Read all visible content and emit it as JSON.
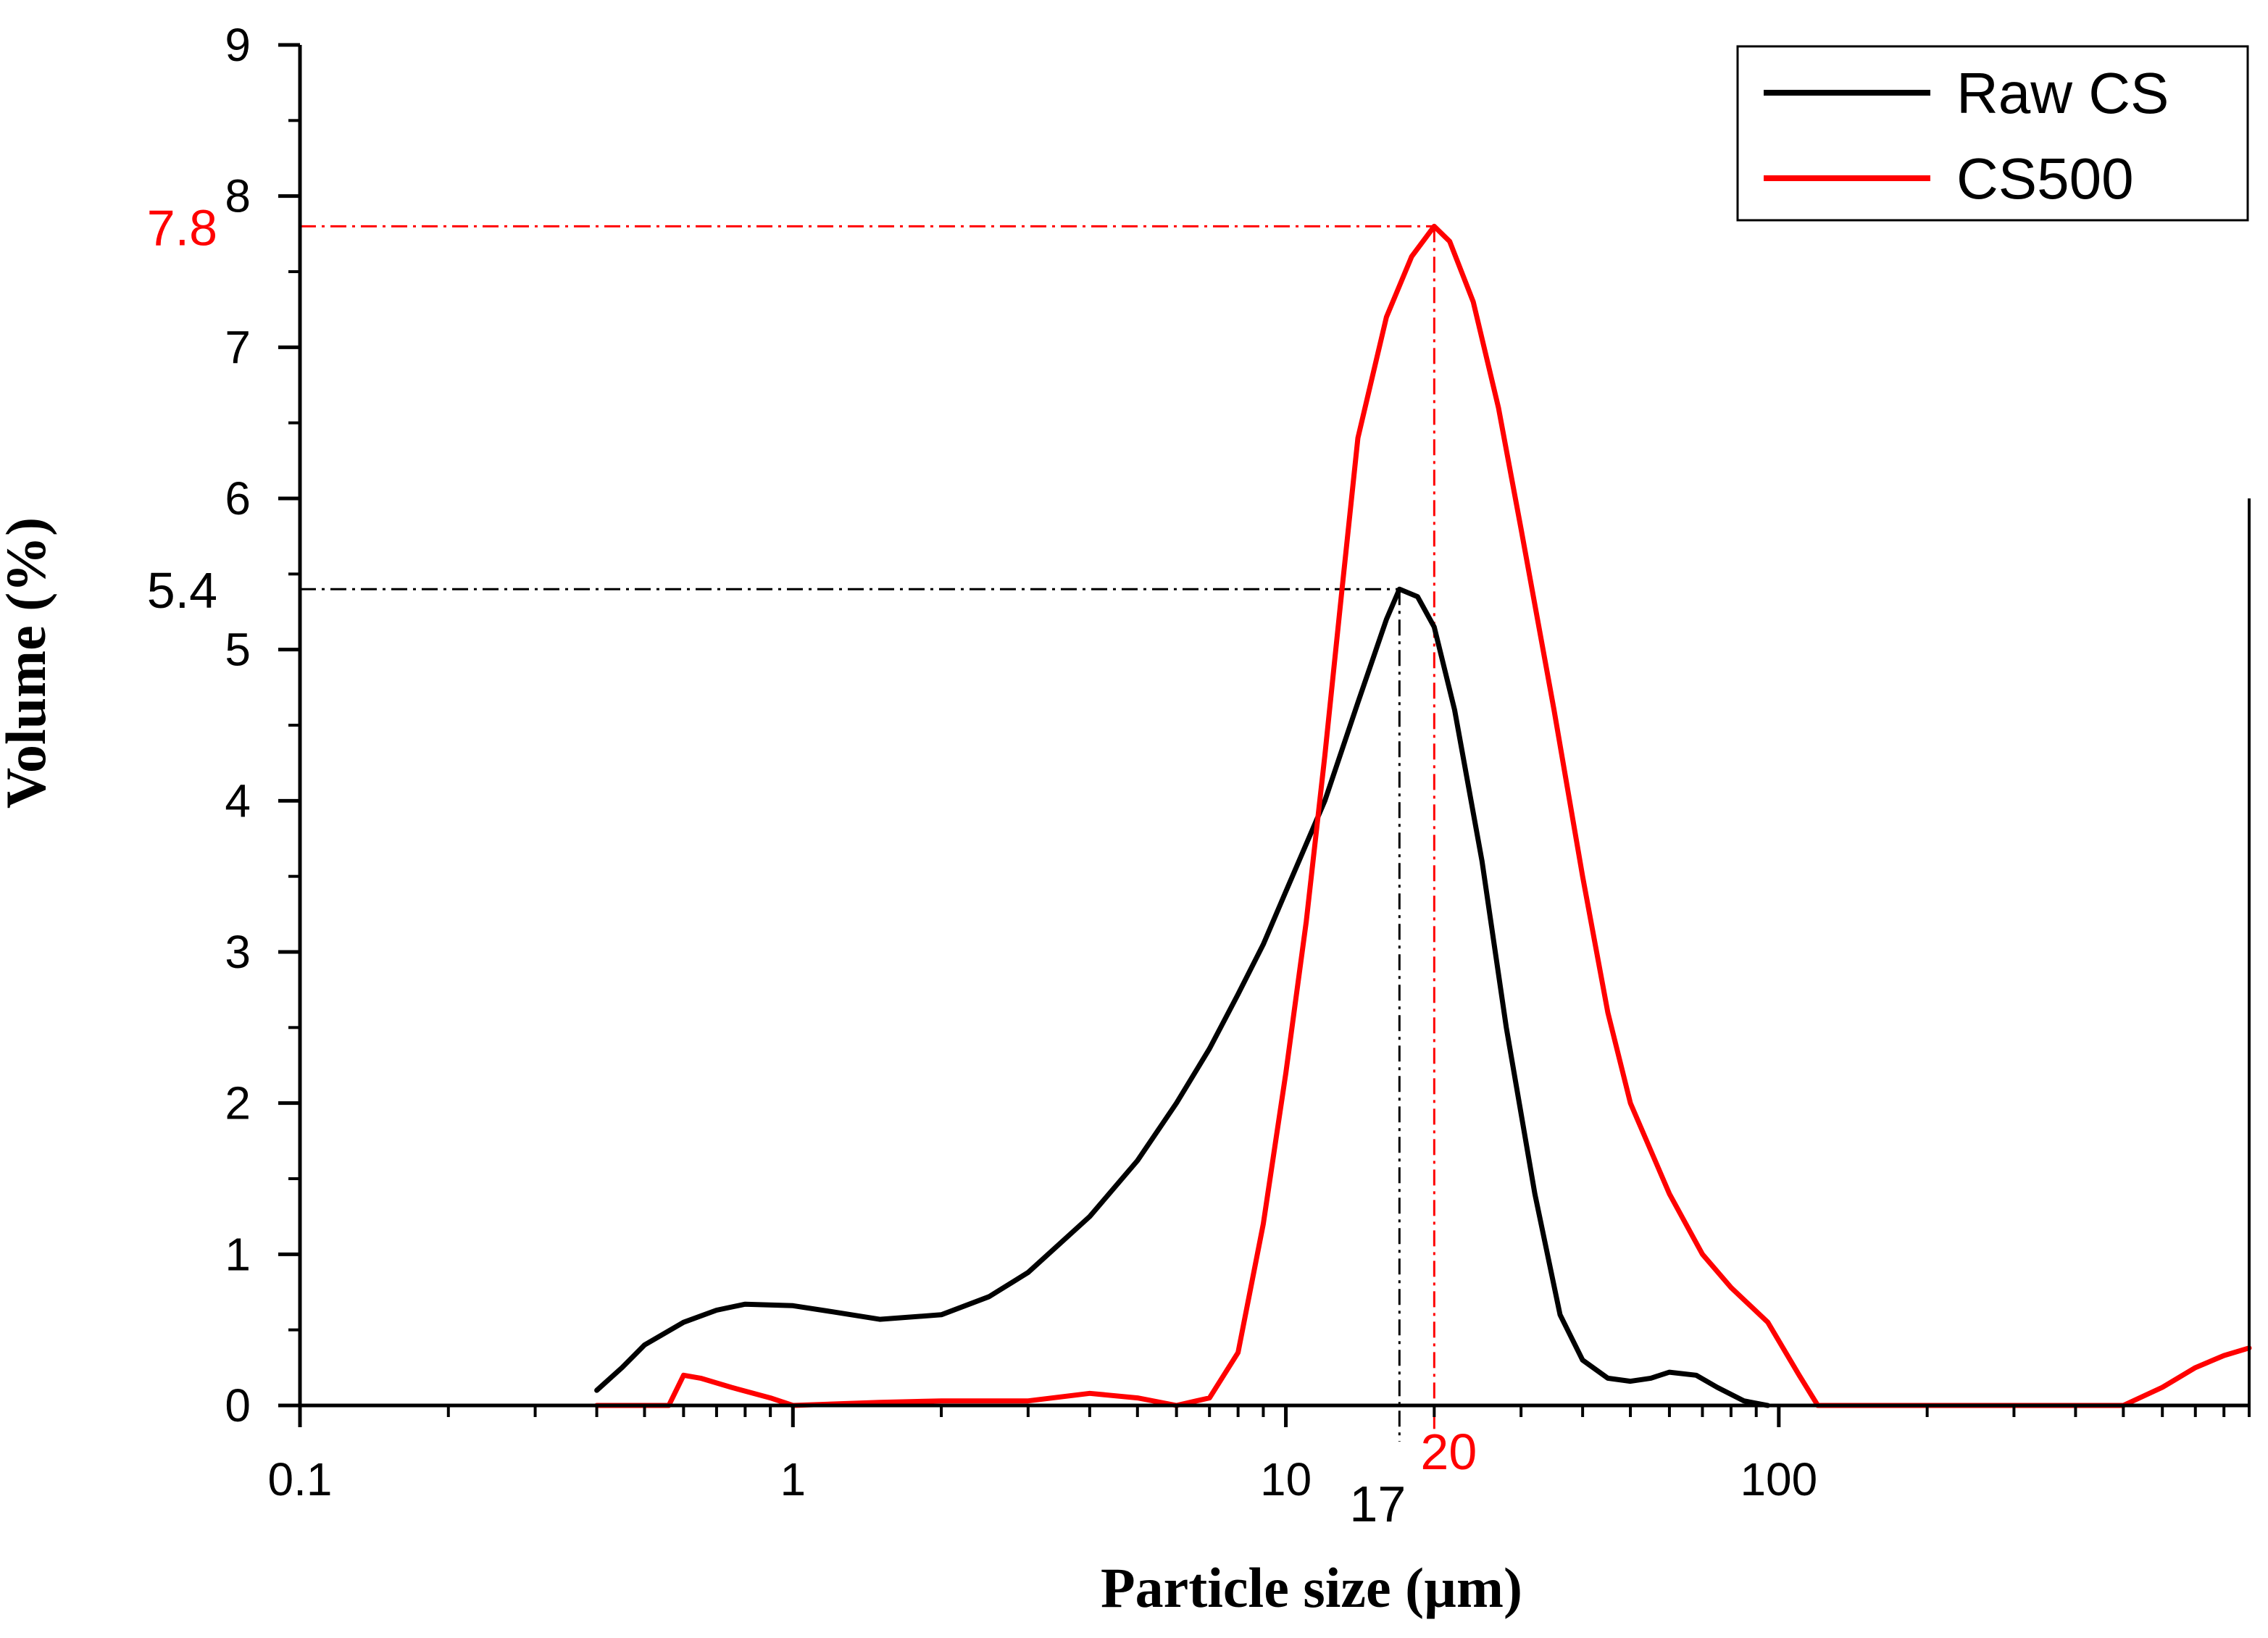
{
  "chart_data": {
    "type": "line",
    "title": "",
    "xlabel": "Particle size (µm)",
    "ylabel": "Volume (%)",
    "xscale": "log",
    "xlim": [
      0.1,
      900
    ],
    "ylim": [
      0,
      9
    ],
    "x_ticks": [
      0.1,
      1,
      10,
      100
    ],
    "x_tick_labels": [
      "0.1",
      "1",
      "10",
      "100"
    ],
    "y_ticks": [
      0,
      1,
      2,
      3,
      4,
      5,
      6,
      7,
      8,
      9
    ],
    "y_tick_labels": [
      "0",
      "1",
      "2",
      "3",
      "4",
      "5",
      "6",
      "7",
      "8",
      "9"
    ],
    "legend": {
      "position": "top-right",
      "entries": [
        "Raw CS",
        "CS500"
      ]
    },
    "series": [
      {
        "name": "Raw CS",
        "color": "#000000",
        "points": [
          [
            0.4,
            0.1
          ],
          [
            0.45,
            0.25
          ],
          [
            0.5,
            0.4
          ],
          [
            0.6,
            0.55
          ],
          [
            0.7,
            0.63
          ],
          [
            0.8,
            0.67
          ],
          [
            1.0,
            0.66
          ],
          [
            1.2,
            0.62
          ],
          [
            1.5,
            0.57
          ],
          [
            2.0,
            0.6
          ],
          [
            2.5,
            0.72
          ],
          [
            3.0,
            0.88
          ],
          [
            4.0,
            1.25
          ],
          [
            5.0,
            1.62
          ],
          [
            6.0,
            2.0
          ],
          [
            7.0,
            2.36
          ],
          [
            8.0,
            2.72
          ],
          [
            9.0,
            3.05
          ],
          [
            10.0,
            3.4
          ],
          [
            12.0,
            4.0
          ],
          [
            14.0,
            4.65
          ],
          [
            16.0,
            5.2
          ],
          [
            17.0,
            5.4
          ],
          [
            18.5,
            5.35
          ],
          [
            20.0,
            5.15
          ],
          [
            22.0,
            4.6
          ],
          [
            25.0,
            3.6
          ],
          [
            28.0,
            2.5
          ],
          [
            32.0,
            1.4
          ],
          [
            36.0,
            0.6
          ],
          [
            40.0,
            0.3
          ],
          [
            45.0,
            0.18
          ],
          [
            50.0,
            0.16
          ],
          [
            55.0,
            0.18
          ],
          [
            60.0,
            0.22
          ],
          [
            68.0,
            0.2
          ],
          [
            75.0,
            0.12
          ],
          [
            85.0,
            0.03
          ],
          [
            95.0,
            0.0
          ]
        ]
      },
      {
        "name": "CS500",
        "color": "#ff0000",
        "points": [
          [
            0.4,
            0.0
          ],
          [
            0.56,
            0.0
          ],
          [
            0.6,
            0.2
          ],
          [
            0.65,
            0.18
          ],
          [
            0.75,
            0.12
          ],
          [
            0.9,
            0.05
          ],
          [
            1.0,
            0.0
          ],
          [
            1.5,
            0.02
          ],
          [
            2.0,
            0.03
          ],
          [
            3.0,
            0.03
          ],
          [
            4.0,
            0.08
          ],
          [
            5.0,
            0.05
          ],
          [
            6.0,
            0.0
          ],
          [
            7.0,
            0.05
          ],
          [
            8.0,
            0.35
          ],
          [
            9.0,
            1.2
          ],
          [
            10.0,
            2.2
          ],
          [
            11.0,
            3.2
          ],
          [
            12.0,
            4.3
          ],
          [
            13.0,
            5.4
          ],
          [
            14.0,
            6.4
          ],
          [
            16.0,
            7.2
          ],
          [
            18.0,
            7.6
          ],
          [
            20.0,
            7.8
          ],
          [
            21.5,
            7.7
          ],
          [
            24.0,
            7.3
          ],
          [
            27.0,
            6.6
          ],
          [
            30.0,
            5.8
          ],
          [
            35.0,
            4.6
          ],
          [
            40.0,
            3.5
          ],
          [
            45.0,
            2.6
          ],
          [
            50.0,
            2.0
          ],
          [
            60.0,
            1.4
          ],
          [
            70.0,
            1.0
          ],
          [
            80.0,
            0.78
          ],
          [
            95.0,
            0.55
          ],
          [
            110.0,
            0.2
          ],
          [
            120.0,
            0.0
          ],
          [
            200.0,
            0.0
          ],
          [
            500.0,
            0.0
          ],
          [
            600.0,
            0.12
          ],
          [
            700.0,
            0.25
          ],
          [
            800.0,
            0.33
          ],
          [
            900.0,
            0.38
          ]
        ]
      }
    ],
    "annotations": [
      {
        "series": "Raw CS",
        "peak_x": 17,
        "peak_y": 5.4,
        "x_label": "17",
        "y_label": "5.4",
        "color": "#000000"
      },
      {
        "series": "CS500",
        "peak_x": 20,
        "peak_y": 7.8,
        "x_label": "20",
        "y_label": "7.8",
        "color": "#ff0000"
      }
    ]
  }
}
